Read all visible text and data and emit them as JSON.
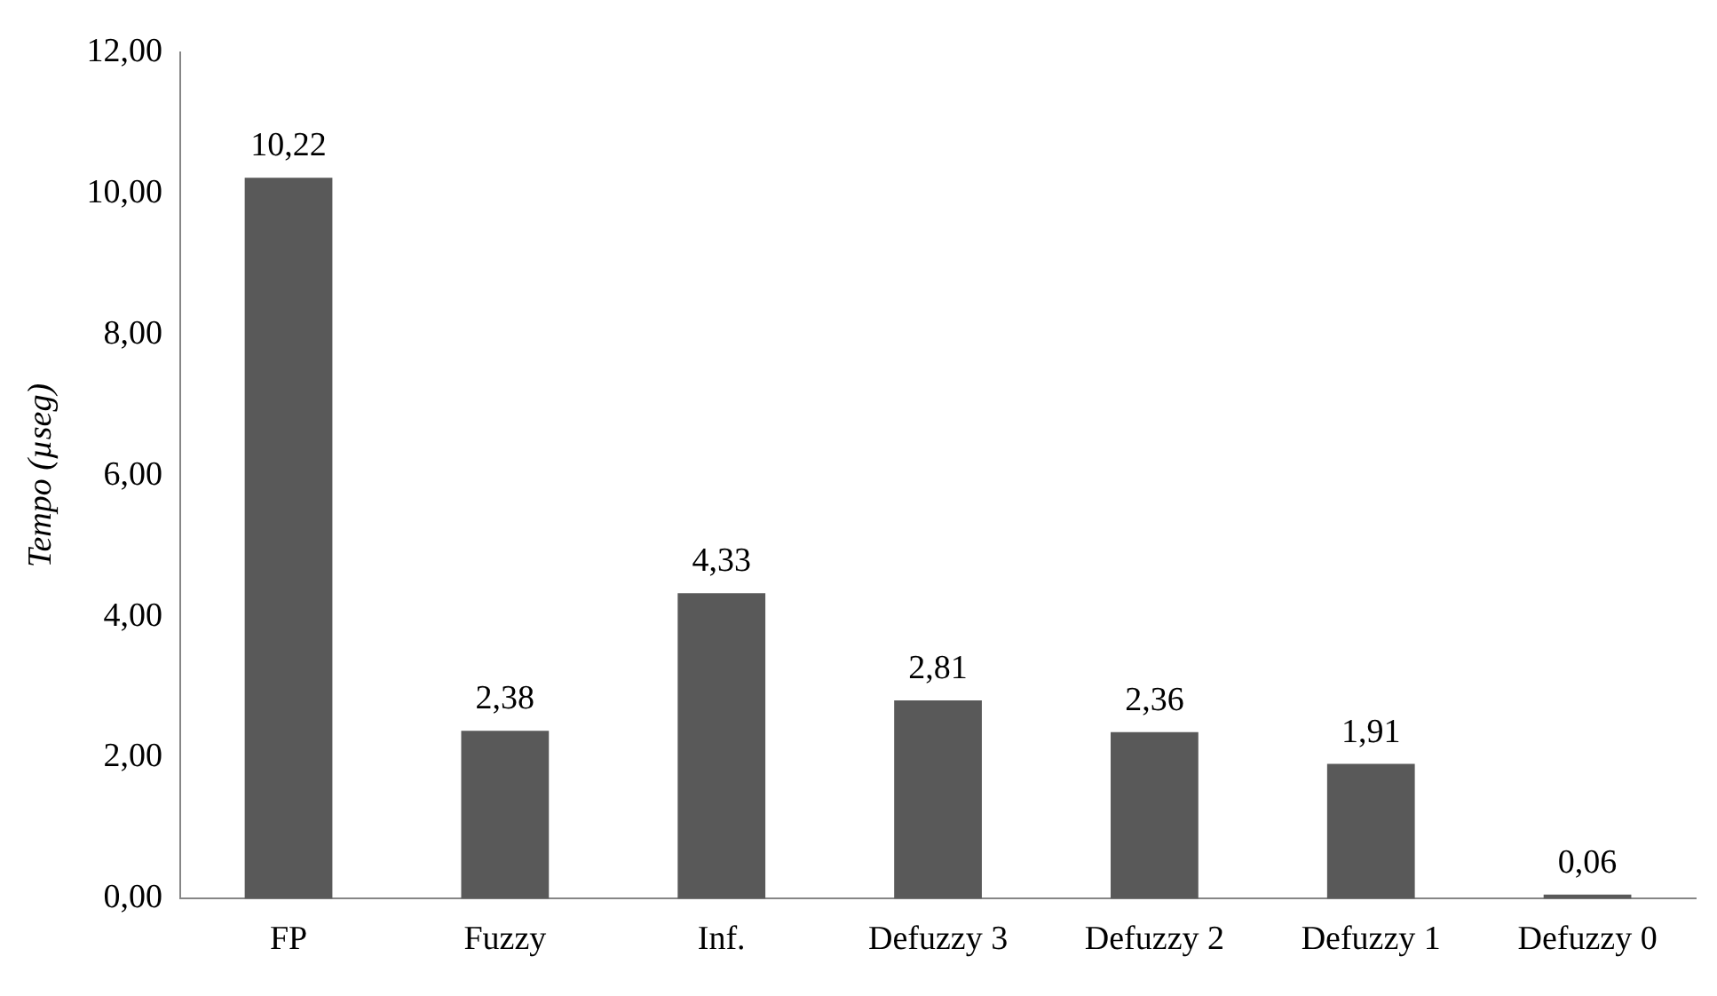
{
  "chart_data": {
    "type": "bar",
    "ylabel": "Tempo (µseg)",
    "categories": [
      "FP",
      "Fuzzy",
      "Inf.",
      "Defuzzy 3",
      "Defuzzy 2",
      "Defuzzy 1",
      "Defuzzy 0"
    ],
    "values": [
      10.22,
      2.38,
      4.33,
      2.81,
      2.36,
      1.91,
      0.06
    ],
    "value_labels": [
      "10,22",
      "2,38",
      "4,33",
      "2,81",
      "2,36",
      "1,91",
      "0,06"
    ],
    "color": "#595959",
    "ylim": [
      0,
      12
    ],
    "yticks": [
      {
        "value": 0,
        "label": "0,00"
      },
      {
        "value": 2,
        "label": "2,00"
      },
      {
        "value": 4,
        "label": "4,00"
      },
      {
        "value": 6,
        "label": "6,00"
      },
      {
        "value": 8,
        "label": "8,00"
      },
      {
        "value": 10,
        "label": "10,00"
      },
      {
        "value": 12,
        "label": "12,00"
      }
    ],
    "grid": false,
    "legend": false
  }
}
